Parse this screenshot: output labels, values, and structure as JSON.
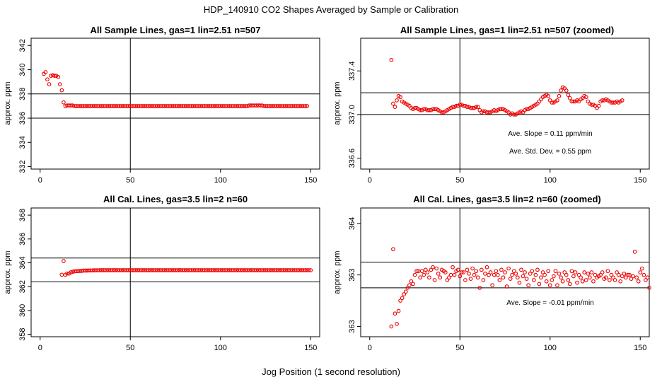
{
  "figure": {
    "title": "HDP_140910  CO2 Shapes Averaged by Sample or Calibration",
    "xlabel": "Jog Position (1 second resolution)"
  },
  "chart_data": [
    {
      "id": "p1",
      "type": "scatter",
      "title": "All Sample Lines, gas=1 lin=2.51 n=507",
      "ylabel": "approx. ppm",
      "xlim": [
        -5,
        155
      ],
      "ylim": [
        331.8,
        342.6
      ],
      "xticks": [
        0,
        50,
        100,
        150
      ],
      "yticks": [
        332,
        334,
        336,
        338,
        340,
        342
      ],
      "vline": 50,
      "hlines": [
        336,
        338
      ],
      "x_start": 2,
      "y": [
        339.65,
        339.8,
        339.2,
        338.8,
        339.5,
        339.55,
        339.5,
        339.5,
        339.4,
        338.8,
        338.3,
        337.3,
        337.0,
        337.05,
        337.05,
        337.05,
        337.05,
        337.0,
        337.0,
        337.0,
        337.0,
        337.0,
        337.0,
        337.0,
        337.0,
        337.0,
        337.0,
        337.0,
        337.0,
        337.0,
        337.0,
        337.0,
        337.0,
        337.0,
        337.0,
        337.0,
        337.0,
        337.0,
        337.0,
        337.0,
        337.0,
        337.0,
        337.0,
        337.0,
        337.0,
        337.0,
        337.0,
        337.0,
        337.0,
        337.0,
        337.0,
        337.0,
        337.0,
        337.0,
        337.0,
        337.0,
        337.0,
        337.0,
        337.0,
        337.0,
        337.0,
        337.0,
        337.0,
        337.0,
        337.0,
        337.0,
        337.0,
        337.0,
        337.0,
        337.0,
        337.0,
        337.0,
        337.0,
        337.0,
        337.0,
        337.0,
        337.0,
        337.0,
        337.0,
        337.0,
        337.0,
        337.0,
        337.0,
        337.0,
        337.0,
        337.0,
        337.0,
        337.0,
        337.0,
        337.0,
        337.0,
        337.0,
        337.0,
        337.0,
        337.0,
        337.0,
        337.0,
        337.0,
        337.0,
        337.0,
        337.0,
        337.0,
        337.0,
        337.0,
        337.0,
        337.0,
        337.0,
        337.0,
        337.0,
        337.0,
        337.0,
        337.0,
        337.0,
        337.0,
        337.05,
        337.05,
        337.05,
        337.05,
        337.05,
        337.05,
        337.05,
        337.05,
        337.0,
        337.0,
        337.0,
        337.0,
        337.0,
        337.0,
        337.0,
        337.0,
        337.0,
        337.0,
        337.0,
        337.0,
        337.0,
        337.0,
        337.0,
        337.0,
        337.0,
        337.0,
        337.0,
        337.0,
        337.0,
        337.0,
        337.0,
        337.0,
        337.0
      ],
      "annotations": []
    },
    {
      "id": "p2",
      "type": "scatter",
      "title": "All Sample Lines, gas=1 lin=2.51 n=507 (zoomed)",
      "ylabel": "approx. ppm",
      "xlim": [
        -5,
        155
      ],
      "ylim": [
        336.5,
        337.7
      ],
      "xticks": [
        0,
        50,
        100,
        150
      ],
      "yticks": [
        336.6,
        337.0,
        337.4
      ],
      "vline": 50,
      "hlines": [
        337.0,
        337.2
      ],
      "x_start": 12,
      "y": [
        337.5,
        337.1,
        337.07,
        337.13,
        337.17,
        337.16,
        337.12,
        337.11,
        337.1,
        337.09,
        337.08,
        337.06,
        337.05,
        337.06,
        337.06,
        337.05,
        337.04,
        337.04,
        337.05,
        337.05,
        337.04,
        337.04,
        337.04,
        337.05,
        337.05,
        337.05,
        337.04,
        337.03,
        337.02,
        337.02,
        337.03,
        337.04,
        337.05,
        337.06,
        337.07,
        337.07,
        337.08,
        337.08,
        337.09,
        337.09,
        337.08,
        337.08,
        337.07,
        337.07,
        337.06,
        337.06,
        337.06,
        337.07,
        337.07,
        337.04,
        337.02,
        337.03,
        337.03,
        337.02,
        337.02,
        337.02,
        337.03,
        337.04,
        337.03,
        337.04,
        337.05,
        337.05,
        337.05,
        337.04,
        337.03,
        337.02,
        337.0,
        337.01,
        337.0,
        337.0,
        337.01,
        337.02,
        337.03,
        337.02,
        337.04,
        337.05,
        337.05,
        337.06,
        337.07,
        337.08,
        337.09,
        337.1,
        337.12,
        337.14,
        337.16,
        337.17,
        337.18,
        337.17,
        337.13,
        337.11,
        337.11,
        337.12,
        337.13,
        337.17,
        337.22,
        337.25,
        337.24,
        337.22,
        337.18,
        337.15,
        337.12,
        337.12,
        337.12,
        337.13,
        337.12,
        337.14,
        337.15,
        337.17,
        337.16,
        337.12,
        337.1,
        337.09,
        337.09,
        337.08,
        337.06,
        337.08,
        337.12,
        337.13,
        337.13,
        337.14,
        337.13,
        337.12,
        337.11,
        337.11,
        337.11,
        337.12,
        337.11,
        337.12,
        337.13
      ],
      "annotations": [
        "Ave. Slope =  0.11  ppm/min",
        "Ave. Std. Dev. =  0.55  ppm"
      ]
    },
    {
      "id": "p3",
      "type": "scatter",
      "title": "All Cal. Lines, gas=3.5 lin=2 n=60",
      "ylabel": "approx. ppm",
      "xlim": [
        -5,
        155
      ],
      "ylim": [
        357.8,
        368.6
      ],
      "xticks": [
        0,
        50,
        100,
        150
      ],
      "yticks": [
        358,
        360,
        362,
        364,
        366,
        368
      ],
      "vline": 50,
      "hlines": [
        362.4,
        364.4
      ],
      "x_start": 12,
      "y": [
        363.0,
        364.15,
        363.0,
        363.1,
        363.1,
        363.2,
        363.25,
        363.28,
        363.3,
        363.3,
        363.32,
        363.32,
        363.35,
        363.35,
        363.35,
        363.36,
        363.36,
        363.36,
        363.37,
        363.37,
        363.37,
        363.38,
        363.38,
        363.38,
        363.38,
        363.38,
        363.38,
        363.38,
        363.38,
        363.39,
        363.38,
        363.38,
        363.38,
        363.38,
        363.38,
        363.38,
        363.38,
        363.38,
        363.38,
        363.38,
        363.38,
        363.38,
        363.38,
        363.38,
        363.38,
        363.38,
        363.38,
        363.38,
        363.38,
        363.38,
        363.38,
        363.38,
        363.38,
        363.38,
        363.38,
        363.38,
        363.38,
        363.38,
        363.38,
        363.38,
        363.38,
        363.38,
        363.38,
        363.38,
        363.38,
        363.38,
        363.38,
        363.38,
        363.38,
        363.38,
        363.38,
        363.38,
        363.38,
        363.38,
        363.38,
        363.38,
        363.38,
        363.38,
        363.38,
        363.38,
        363.38,
        363.38,
        363.38,
        363.38,
        363.38,
        363.38,
        363.38,
        363.38,
        363.38,
        363.38,
        363.38,
        363.38,
        363.38,
        363.38,
        363.38,
        363.38,
        363.38,
        363.38,
        363.38,
        363.38,
        363.38,
        363.38,
        363.38,
        363.38,
        363.38,
        363.38,
        363.38,
        363.38,
        363.38,
        363.38,
        363.38,
        363.38,
        363.38,
        363.38,
        363.38,
        363.38,
        363.38,
        363.38,
        363.38,
        363.38,
        363.38,
        363.38,
        363.38,
        363.38,
        363.38,
        363.38,
        363.38,
        363.38,
        363.38,
        363.38,
        363.38,
        363.38,
        363.38,
        363.38,
        363.38,
        363.38,
        363.38,
        363.38,
        363.38
      ],
      "annotations": []
    },
    {
      "id": "p4",
      "type": "scatter",
      "title": "All Cal. Lines, gas=3.5 lin=2 n=60 (zoomed)",
      "ylabel": "approx. ppm",
      "xlim": [
        -5,
        155
      ],
      "ylim": [
        362.92,
        363.92
      ],
      "xticks": [
        0,
        50,
        100,
        150
      ],
      "yticks": [
        363.0,
        363.4,
        363.8
      ],
      "vline": 50,
      "hlines": [
        363.3,
        363.5
      ],
      "x_start": 12,
      "y": [
        363.0,
        363.6,
        363.1,
        363.02,
        363.12,
        363.2,
        363.22,
        363.25,
        363.27,
        363.3,
        363.32,
        363.35,
        363.33,
        363.4,
        363.43,
        363.43,
        363.38,
        363.43,
        363.4,
        363.44,
        363.42,
        363.38,
        363.44,
        363.46,
        363.36,
        363.45,
        363.41,
        363.38,
        363.44,
        363.43,
        363.42,
        363.36,
        363.38,
        363.4,
        363.46,
        363.4,
        363.43,
        363.44,
        363.39,
        363.42,
        363.42,
        363.36,
        363.44,
        363.41,
        363.37,
        363.45,
        363.4,
        363.43,
        363.38,
        363.3,
        363.44,
        363.36,
        363.41,
        363.46,
        363.4,
        363.42,
        363.32,
        363.4,
        363.43,
        363.4,
        363.36,
        363.44,
        363.38,
        363.42,
        363.31,
        363.45,
        363.37,
        363.4,
        363.43,
        363.41,
        363.38,
        363.34,
        363.44,
        363.39,
        363.42,
        363.37,
        363.32,
        363.41,
        363.43,
        363.36,
        363.4,
        363.44,
        363.33,
        363.38,
        363.42,
        363.4,
        363.35,
        363.43,
        363.32,
        363.36,
        363.39,
        363.43,
        363.32,
        363.41,
        363.38,
        363.35,
        363.42,
        363.4,
        363.36,
        363.33,
        363.43,
        363.39,
        363.42,
        363.34,
        363.4,
        363.38,
        363.35,
        363.42,
        363.36,
        363.41,
        363.38,
        363.42,
        363.35,
        363.4,
        363.38,
        363.39,
        363.4,
        363.42,
        363.37,
        363.38,
        363.43,
        363.36,
        363.4,
        363.38,
        363.36,
        363.42,
        363.4,
        363.35,
        363.39,
        363.41,
        363.38,
        363.4,
        363.4,
        363.37,
        363.39,
        363.58,
        363.38,
        363.35,
        363.42,
        363.45,
        363.4,
        363.36,
        363.38,
        363.3
      ],
      "annotations": [
        "Ave. Slope =  -0.01  ppm/min"
      ]
    }
  ]
}
